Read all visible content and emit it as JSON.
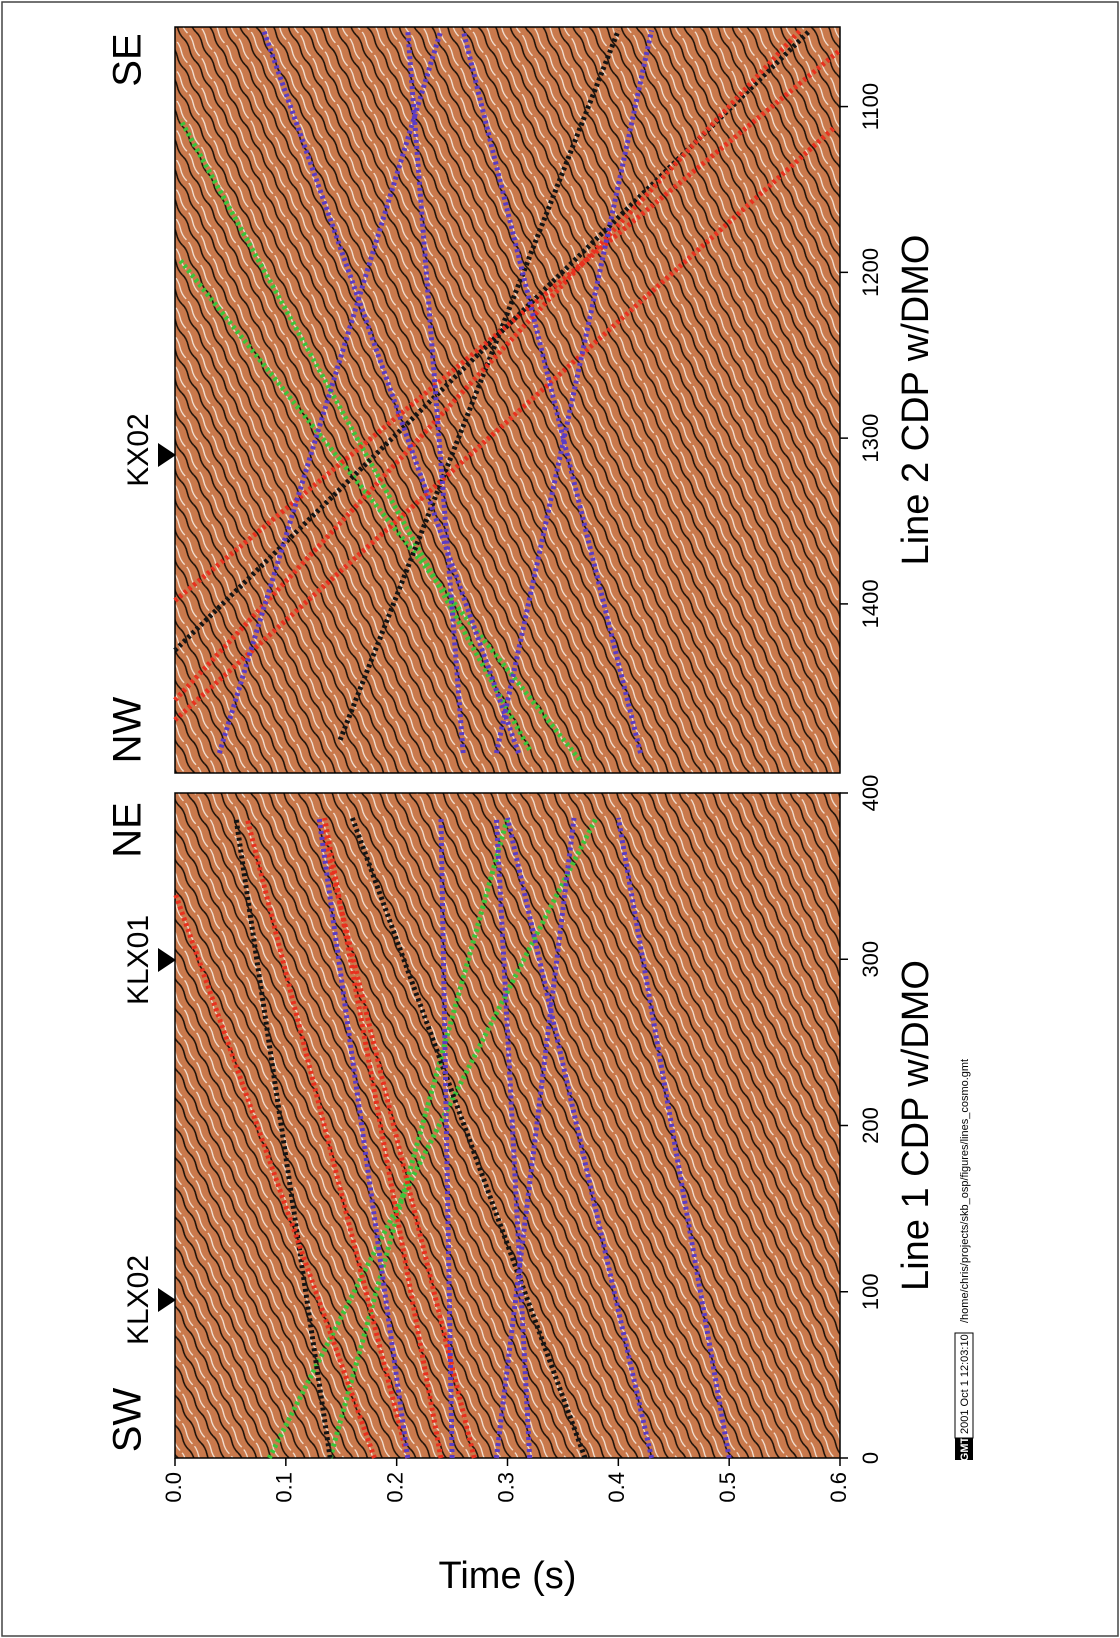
{
  "chart_data": [
    {
      "type": "line",
      "xlabel": "Line 1 CDP w/DMO",
      "ylabel": "Time (s)",
      "annotations": [
        "SW",
        "KLX02",
        "KLX01",
        "NE"
      ],
      "xlim": [
        0,
        400
      ],
      "xticks": [
        0,
        100,
        200,
        300,
        400
      ],
      "ylim": [
        0,
        0.6
      ],
      "yticks": [
        {
          "value": 0,
          "label": "0.0"
        },
        0.1,
        0.2,
        0.3,
        0.4,
        0.5,
        0.6
      ],
      "series": [
        {
          "color": "#3cc43a",
          "x": [
            0,
            385
          ],
          "values": [
            0.085,
            0.38
          ]
        },
        {
          "color": "#3cc43a",
          "x": [
            0,
            385
          ],
          "values": [
            0.14,
            0.3
          ]
        },
        {
          "color": "#141414",
          "x": [
            0,
            385
          ],
          "values": [
            0.14,
            0.055
          ]
        },
        {
          "color": "#141414",
          "x": [
            0,
            385
          ],
          "values": [
            0.37,
            0.16
          ]
        },
        {
          "color": "#e8311f",
          "x": [
            0,
            340
          ],
          "values": [
            0.18,
            0.0
          ]
        },
        {
          "color": "#e8311f",
          "x": [
            0,
            385
          ],
          "values": [
            0.21,
            0.065
          ]
        },
        {
          "color": "#e8311f",
          "x": [
            0,
            385
          ],
          "values": [
            0.24,
            0.135
          ]
        },
        {
          "color": "#e8311f",
          "x": [
            0,
            385
          ],
          "values": [
            0.27,
            0.13
          ]
        },
        {
          "color": "#5b3cc4",
          "x": [
            0,
            385
          ],
          "values": [
            0.21,
            0.13
          ]
        },
        {
          "color": "#5b3cc4",
          "x": [
            0,
            385
          ],
          "values": [
            0.25,
            0.24
          ]
        },
        {
          "color": "#5b3cc4",
          "x": [
            0,
            385
          ],
          "values": [
            0.29,
            0.36
          ]
        },
        {
          "color": "#5b3cc4",
          "x": [
            0,
            385
          ],
          "values": [
            0.32,
            0.29
          ]
        },
        {
          "color": "#5b3cc4",
          "x": [
            0,
            385
          ],
          "values": [
            0.43,
            0.3
          ]
        },
        {
          "color": "#5b3cc4",
          "x": [
            0,
            385
          ],
          "values": [
            0.5,
            0.4
          ]
        }
      ]
    },
    {
      "type": "line",
      "xlabel": "Line 2 CDP w/DMO",
      "annotations": [
        "NW",
        "KX02",
        "SE"
      ],
      "xlim": [
        1502,
        1052
      ],
      "xticks": [
        1100,
        1200,
        1300,
        1400
      ],
      "ylim": [
        0,
        0.6
      ],
      "series": [
        {
          "color": "#3cc43a",
          "x": [
            1488,
            1108
          ],
          "values": [
            0.32,
            0.005
          ]
        },
        {
          "color": "#3cc43a",
          "x": [
            1494,
            1193
          ],
          "values": [
            0.365,
            0.005
          ]
        },
        {
          "color": "#141414",
          "x": [
            1428,
            1054
          ],
          "values": [
            0.0,
            0.573
          ]
        },
        {
          "color": "#141414",
          "x": [
            1482,
            1054
          ],
          "values": [
            0.149,
            0.4
          ]
        },
        {
          "color": "#e8311f",
          "x": [
            1398,
            1066
          ],
          "values": [
            0.0,
            0.6
          ]
        },
        {
          "color": "#e8311f",
          "x": [
            1458,
            1054
          ],
          "values": [
            0.0,
            0.564
          ]
        },
        {
          "color": "#e8311f",
          "x": [
            1470,
            1112
          ],
          "values": [
            0.0,
            0.596
          ]
        },
        {
          "color": "#5b3cc4",
          "x": [
            1490,
            1054
          ],
          "values": [
            0.04,
            0.24
          ]
        },
        {
          "color": "#5b3cc4",
          "x": [
            1490,
            1054
          ],
          "values": [
            0.26,
            0.21
          ]
        },
        {
          "color": "#5b3cc4",
          "x": [
            1490,
            1054
          ],
          "values": [
            0.29,
            0.43
          ]
        },
        {
          "color": "#5b3cc4",
          "x": [
            1490,
            1054
          ],
          "values": [
            0.42,
            0.26
          ]
        },
        {
          "color": "#5b3cc4",
          "x": [
            1490,
            1054
          ],
          "values": [
            0.31,
            0.08
          ]
        }
      ]
    }
  ],
  "stamp": {
    "logo": "GMT",
    "date": "2001 Oct 1 12:03:10",
    "path": "/home/chris/projects/skb_osp/figures/lines_cosmo.gmt"
  }
}
